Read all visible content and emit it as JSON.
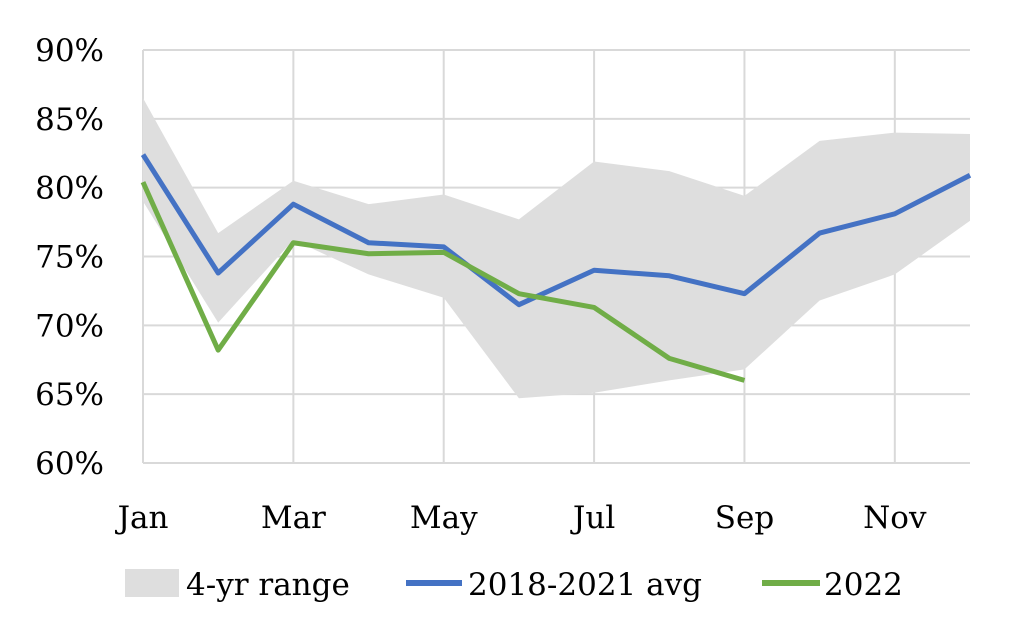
{
  "chart_data": {
    "type": "line",
    "title": "",
    "xlabel": "",
    "ylabel": "",
    "x": [
      "Jan",
      "Feb",
      "Mar",
      "Apr",
      "May",
      "Jun",
      "Jul",
      "Aug",
      "Sep",
      "Oct",
      "Nov",
      "Dec"
    ],
    "x_tick_labels": [
      "Jan",
      "Mar",
      "May",
      "Jul",
      "Sep",
      "Nov"
    ],
    "y_tick_labels": [
      "60%",
      "65%",
      "70%",
      "75%",
      "80%",
      "85%",
      "90%"
    ],
    "y_ticks": [
      60,
      65,
      70,
      75,
      80,
      85,
      90
    ],
    "ylim": [
      60,
      90
    ],
    "grid": true,
    "legend_position": "bottom",
    "range": {
      "name": "4-yr range",
      "color": "#dedede",
      "upper": [
        86.5,
        76.7,
        80.5,
        78.8,
        79.5,
        77.7,
        81.9,
        81.2,
        79.4,
        83.4,
        84.0,
        83.9
      ],
      "lower": [
        79.0,
        70.2,
        76.2,
        73.7,
        72.0,
        64.7,
        65.1,
        66.0,
        66.8,
        71.8,
        73.7,
        77.6
      ]
    },
    "series": [
      {
        "name": "2018-2021 avg",
        "color": "#4472c4",
        "values": [
          82.4,
          73.8,
          78.8,
          76.0,
          75.7,
          71.5,
          74.0,
          73.6,
          72.3,
          76.7,
          78.1,
          80.9
        ]
      },
      {
        "name": "2022",
        "color": "#70ad47",
        "values": [
          80.4,
          68.2,
          76.0,
          75.2,
          75.3,
          72.3,
          71.3,
          67.6,
          66.0,
          null,
          null,
          null
        ]
      }
    ]
  }
}
